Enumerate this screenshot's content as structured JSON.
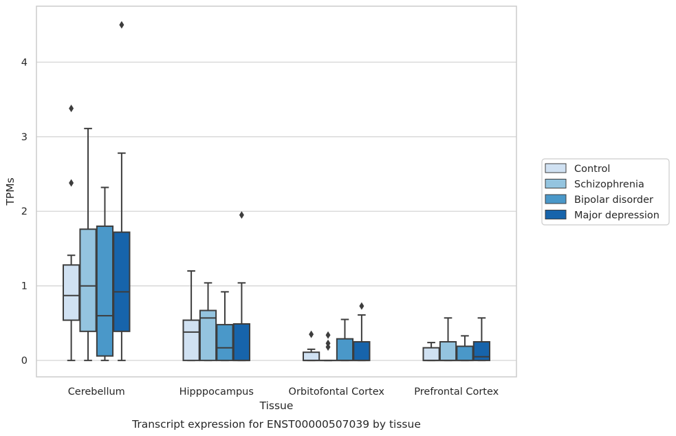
{
  "chart_data": {
    "type": "box",
    "caption": "Transcript expression for ENST00000507039 by tissue",
    "xlabel": "Tissue",
    "ylabel": "TPMs",
    "ylim": [
      -0.22,
      4.75
    ],
    "yticks": [
      0,
      1,
      2,
      3,
      4
    ],
    "grid": "horizontal",
    "legend_position": "right",
    "categories": [
      "Cerebellum",
      "Hipppocampus",
      "Orbitofontal Cortex",
      "Prefrontal Cortex"
    ],
    "series": [
      {
        "name": "Control",
        "color": "#d0e1f2",
        "boxes": [
          {
            "whislo": 0,
            "q1": 0.54,
            "med": 0.87,
            "q3": 1.28,
            "whishi": 1.41,
            "fliers": [
              2.38,
              3.38
            ]
          },
          {
            "whislo": 0,
            "q1": 0,
            "med": 0.38,
            "q3": 0.54,
            "whishi": 1.2,
            "fliers": []
          },
          {
            "whislo": 0,
            "q1": 0,
            "med": 0,
            "q3": 0.11,
            "whishi": 0.15,
            "fliers": [
              0.35
            ]
          },
          {
            "whislo": 0,
            "q1": 0,
            "med": 0,
            "q3": 0.17,
            "whishi": 0.24,
            "fliers": []
          }
        ]
      },
      {
        "name": "Schizophrenia",
        "color": "#94c4df",
        "boxes": [
          {
            "whislo": 0,
            "q1": 0.39,
            "med": 1.0,
            "q3": 1.76,
            "whishi": 3.11,
            "fliers": []
          },
          {
            "whislo": 0,
            "q1": 0,
            "med": 0.57,
            "q3": 0.67,
            "whishi": 1.04,
            "fliers": []
          },
          {
            "whislo": 0,
            "q1": 0,
            "med": 0,
            "q3": 0,
            "whishi": 0,
            "fliers": [
              0.18,
              0.23,
              0.34
            ]
          },
          {
            "whislo": 0,
            "q1": 0,
            "med": 0,
            "q3": 0.25,
            "whishi": 0.57,
            "fliers": []
          }
        ]
      },
      {
        "name": "Bipolar disorder",
        "color": "#4a98c9",
        "boxes": [
          {
            "whislo": 0,
            "q1": 0.06,
            "med": 0.6,
            "q3": 1.8,
            "whishi": 2.32,
            "fliers": []
          },
          {
            "whislo": 0,
            "q1": 0,
            "med": 0.17,
            "q3": 0.48,
            "whishi": 0.92,
            "fliers": []
          },
          {
            "whislo": 0,
            "q1": 0,
            "med": 0,
            "q3": 0.29,
            "whishi": 0.55,
            "fliers": []
          },
          {
            "whislo": 0,
            "q1": 0,
            "med": 0,
            "q3": 0.19,
            "whishi": 0.33,
            "fliers": []
          }
        ]
      },
      {
        "name": "Major depression",
        "color": "#1764ab",
        "boxes": [
          {
            "whislo": 0,
            "q1": 0.39,
            "med": 0.92,
            "q3": 1.72,
            "whishi": 2.78,
            "fliers": [
              4.5
            ]
          },
          {
            "whislo": 0,
            "q1": 0,
            "med": 0,
            "q3": 0.49,
            "whishi": 1.04,
            "fliers": [
              1.95
            ]
          },
          {
            "whislo": 0,
            "q1": 0,
            "med": 0,
            "q3": 0.25,
            "whishi": 0.61,
            "fliers": [
              0.73
            ]
          },
          {
            "whislo": 0,
            "q1": 0,
            "med": 0.05,
            "q3": 0.25,
            "whishi": 0.57,
            "fliers": []
          }
        ]
      }
    ]
  }
}
